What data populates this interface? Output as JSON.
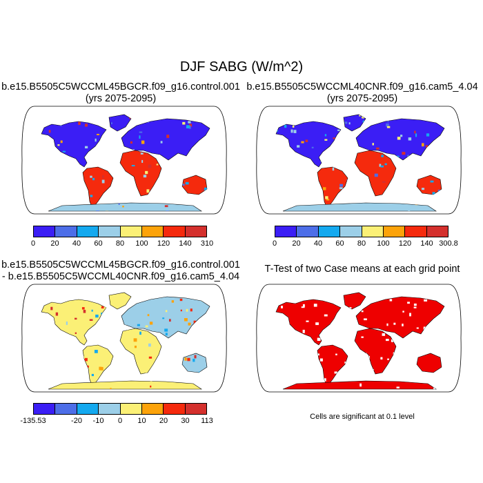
{
  "figure": {
    "title": "DJF SABG (W/m^2)"
  },
  "panels": [
    {
      "title_line1": "b.e15.B5505C5WCCML45BGCR.f09_g16.control.001",
      "title_line2": "(yrs 2075-2095)"
    },
    {
      "title_line1": "b.e15.B5505C5WCCML40CNR.f09_g16.cam5_4.04",
      "title_line2": "(yrs 2075-2095)"
    },
    {
      "title_line1": "b.e15.B5505C5WCCML45BGCR.f09_g16.control.001",
      "title_line2": "- b.e15.B5505C5WCCML40CNR.f09_g16.cam5_4.04"
    },
    {
      "title_line1": "T-Test of two Case means at each grid point",
      "note": "Cells are significant at 0.1 level"
    }
  ],
  "colorbars": {
    "case1": {
      "colors": [
        "#3b1ef5",
        "#4d6ee8",
        "#14a9ef",
        "#9ccfe8",
        "#fbf076",
        "#fca30a",
        "#f52a0d",
        "#d4302d"
      ],
      "labels": [
        "0",
        "20",
        "40",
        "60",
        "80",
        "100",
        "120",
        "140",
        "310"
      ]
    },
    "case2": {
      "colors": [
        "#3b1ef5",
        "#4d6ee8",
        "#14a9ef",
        "#9ccfe8",
        "#fbf076",
        "#fca30a",
        "#f52a0d",
        "#d4302d"
      ],
      "labels": [
        "0",
        "20",
        "40",
        "60",
        "80",
        "100",
        "120",
        "140",
        "300.8"
      ]
    },
    "diff": {
      "colors": [
        "#3b1ef5",
        "#4d6ee8",
        "#14a9ef",
        "#9ccfe8",
        "#fbf076",
        "#fca30a",
        "#f52a0d",
        "#d4302d"
      ],
      "labels": [
        "-135.53",
        "",
        "-20",
        "-10",
        "0",
        "10",
        "20",
        "30",
        "113"
      ]
    }
  },
  "colors": {
    "significant": "#ee0000",
    "land_fill_cold": "#3b1ef5",
    "ocean": "#ffffff"
  }
}
